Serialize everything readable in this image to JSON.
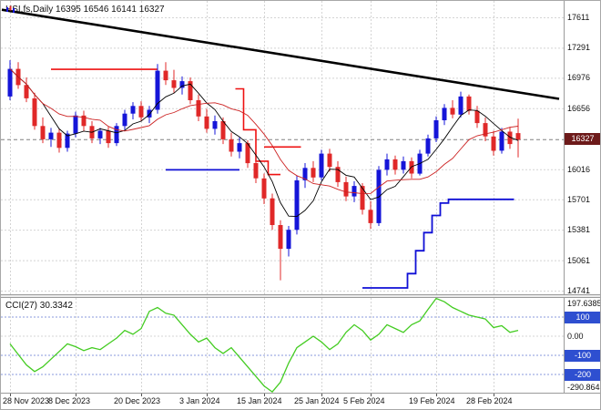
{
  "header": {
    "text": "HSI,fs,Daily 16395 16546 16141 16327",
    "symbol": "HSI,fs,Daily",
    "timeframe": "Daily"
  },
  "indicator": {
    "label": "CCI(27) 30.3342",
    "name": "CCI(27)",
    "value": "30.3342"
  },
  "colors": {
    "background": "#ffffff",
    "bull": "#1515d8",
    "bear": "#e02828",
    "ma_fast": "#000000",
    "ma_slow": "#cc2222",
    "resistance_line": "#ee1111",
    "support_line": "#0f0fd6",
    "trendline": "#000000",
    "cci_line": "#44cc22",
    "grid": "#d4d4d4",
    "price_line": "#808080",
    "level_line": "#8a9ade",
    "price_badge_bg": "#6d1a1a",
    "level_badge_bg": "#2e4fd0"
  },
  "chart_data": [
    {
      "type": "candlestick",
      "title": "HSI,fs,Daily",
      "ohlc": {
        "open": 16395,
        "high": 16546,
        "low": 16141,
        "close": 16327
      },
      "current_price": 16327,
      "current_price_label": "16327",
      "y_range": [
        14741,
        17611
      ],
      "grid": true,
      "y_axis_labels": [
        {
          "text": "17611",
          "value": 17611
        },
        {
          "text": "17291",
          "value": 17291
        },
        {
          "text": "16976",
          "value": 16976
        },
        {
          "text": "16656",
          "value": 16656
        },
        {
          "text": "16016",
          "value": 16016
        },
        {
          "text": "15701",
          "value": 15701
        },
        {
          "text": "15381",
          "value": 15381
        },
        {
          "text": "15061",
          "value": 15061
        },
        {
          "text": "14741",
          "value": 14741
        }
      ],
      "x_ticks": [
        {
          "label": "28 Nov 2023",
          "index": 0
        },
        {
          "label": "8 Dec 2023",
          "index": 8
        },
        {
          "label": "20 Dec 2023",
          "index": 16
        },
        {
          "label": "3 Jan 2024",
          "index": 24
        },
        {
          "label": "15 Jan 2024",
          "index": 31
        },
        {
          "label": "25 Jan 2024",
          "index": 38
        },
        {
          "label": "5 Feb 2024",
          "index": 44
        },
        {
          "label": "19 Feb 2024",
          "index": 52
        },
        {
          "label": "28 Feb 2024",
          "index": 59
        }
      ],
      "candles": [
        [
          16780,
          17160,
          16740,
          17070
        ],
        [
          17070,
          17140,
          16860,
          16900
        ],
        [
          16900,
          16980,
          16720,
          16760
        ],
        [
          16760,
          16820,
          16430,
          16470
        ],
        [
          16470,
          16560,
          16290,
          16330
        ],
        [
          16330,
          16450,
          16250,
          16400
        ],
        [
          16400,
          16440,
          16190,
          16240
        ],
        [
          16240,
          16420,
          16200,
          16390
        ],
        [
          16390,
          16620,
          16350,
          16580
        ],
        [
          16580,
          16630,
          16420,
          16470
        ],
        [
          16470,
          16520,
          16290,
          16340
        ],
        [
          16340,
          16450,
          16280,
          16420
        ],
        [
          16420,
          16460,
          16240,
          16290
        ],
        [
          16290,
          16500,
          16260,
          16470
        ],
        [
          16470,
          16640,
          16430,
          16600
        ],
        [
          16600,
          16720,
          16540,
          16680
        ],
        [
          16680,
          16730,
          16520,
          16560
        ],
        [
          16560,
          16680,
          16500,
          16640
        ],
        [
          16640,
          17120,
          16600,
          17050
        ],
        [
          17050,
          17140,
          16900,
          16950
        ],
        [
          16950,
          17060,
          16820,
          16870
        ],
        [
          16870,
          16990,
          16800,
          16940
        ],
        [
          16940,
          16980,
          16700,
          16740
        ],
        [
          16740,
          16800,
          16520,
          16570
        ],
        [
          16570,
          16650,
          16400,
          16440
        ],
        [
          16440,
          16580,
          16380,
          16520
        ],
        [
          16520,
          16560,
          16280,
          16330
        ],
        [
          16330,
          16400,
          16150,
          16200
        ],
        [
          16200,
          16350,
          16130,
          16290
        ],
        [
          16290,
          16320,
          16030,
          16080
        ],
        [
          16080,
          16150,
          15870,
          15920
        ],
        [
          15920,
          15970,
          15650,
          15710
        ],
        [
          15710,
          15760,
          15380,
          15430
        ],
        [
          15430,
          15480,
          14850,
          15180
        ],
        [
          15180,
          15420,
          15100,
          15380
        ],
        [
          15380,
          15950,
          15330,
          15900
        ],
        [
          15900,
          16080,
          15820,
          16030
        ],
        [
          16030,
          16100,
          15880,
          15930
        ],
        [
          15930,
          16220,
          15900,
          16180
        ],
        [
          16180,
          16230,
          15990,
          16040
        ],
        [
          16040,
          16100,
          15830,
          15880
        ],
        [
          15880,
          15940,
          15680,
          15730
        ],
        [
          15730,
          15890,
          15670,
          15840
        ],
        [
          15840,
          15870,
          15540,
          15590
        ],
        [
          15590,
          15680,
          15390,
          15450
        ],
        [
          15450,
          16050,
          15420,
          16010
        ],
        [
          16010,
          16180,
          15950,
          16120
        ],
        [
          16120,
          16160,
          15960,
          16010
        ],
        [
          16010,
          16150,
          15970,
          16100
        ],
        [
          16100,
          16140,
          15920,
          15970
        ],
        [
          15970,
          16220,
          15950,
          16180
        ],
        [
          16180,
          16380,
          16150,
          16340
        ],
        [
          16340,
          16570,
          16300,
          16530
        ],
        [
          16530,
          16700,
          16480,
          16660
        ],
        [
          16660,
          16740,
          16550,
          16590
        ],
        [
          16590,
          16830,
          16560,
          16780
        ],
        [
          16780,
          16800,
          16590,
          16630
        ],
        [
          16630,
          16680,
          16450,
          16500
        ],
        [
          16500,
          16560,
          16310,
          16360
        ],
        [
          16360,
          16420,
          16160,
          16210
        ],
        [
          16210,
          16450,
          16180,
          16410
        ],
        [
          16410,
          16460,
          16230,
          16280
        ],
        [
          16395,
          16546,
          16141,
          16327
        ]
      ],
      "overlays": {
        "trendline": {
          "from": [
            -1,
            17690
          ],
          "to": [
            67,
            16755
          ]
        },
        "ma_fast_period": 5,
        "ma_slow_period": 12,
        "resistance_steps": [
          [
            [
              5,
              17065
            ],
            [
              18,
              17065
            ]
          ],
          [
            [
              27.5,
              16860
            ],
            [
              28.5,
              16860
            ],
            [
              28.5,
              16430
            ],
            [
              30,
              16430
            ],
            [
              30,
              16100
            ],
            [
              31.5,
              16100
            ],
            [
              31.5,
              15960
            ],
            [
              33,
              15960
            ]
          ],
          [
            [
              31,
              16250
            ],
            [
              35.5,
              16250
            ]
          ]
        ],
        "support_steps": [
          [
            [
              19,
              16010
            ],
            [
              28,
              16010
            ]
          ],
          [
            [
              43,
              14770
            ],
            [
              48.5,
              14770
            ],
            [
              48.5,
              14920
            ],
            [
              49.5,
              14920
            ],
            [
              49.5,
              15160
            ],
            [
              50.5,
              15160
            ],
            [
              50.5,
              15350
            ],
            [
              51.5,
              15350
            ],
            [
              51.5,
              15530
            ],
            [
              52.5,
              15530
            ],
            [
              52.5,
              15660
            ],
            [
              53.5,
              15660
            ],
            [
              53.5,
              15700
            ],
            [
              61.5,
              15700
            ]
          ]
        ]
      }
    },
    {
      "type": "line",
      "title": "CCI(27)",
      "current_value": 30.3342,
      "levels": [
        100,
        -100,
        -200
      ],
      "scale_max": 197.6385,
      "scale_min": -290.8645,
      "axis_labels": [
        {
          "text": "197.6385",
          "value": 197.6385,
          "badge": false
        },
        {
          "text": "100",
          "value": 100,
          "badge": true
        },
        {
          "text": "0.00",
          "value": 0,
          "badge": false
        },
        {
          "text": "-100",
          "value": -100,
          "badge": true
        },
        {
          "text": "-200",
          "value": -200,
          "badge": true
        },
        {
          "text": "-290.8645",
          "value": -290.8645,
          "badge": false
        }
      ],
      "values": [
        -40,
        -95,
        -150,
        -185,
        -160,
        -120,
        -80,
        -40,
        -55,
        -75,
        -60,
        -70,
        -40,
        -10,
        30,
        10,
        40,
        130,
        150,
        120,
        110,
        60,
        10,
        -30,
        -10,
        -60,
        -90,
        -60,
        -110,
        -160,
        -210,
        -260,
        -290.8645,
        -240,
        -140,
        -60,
        -30,
        0,
        -30,
        -70,
        -40,
        20,
        60,
        30,
        -20,
        10,
        60,
        40,
        20,
        60,
        80,
        140,
        197.6385,
        180,
        150,
        130,
        110,
        100,
        90,
        45,
        55,
        20,
        30.3342
      ]
    }
  ]
}
